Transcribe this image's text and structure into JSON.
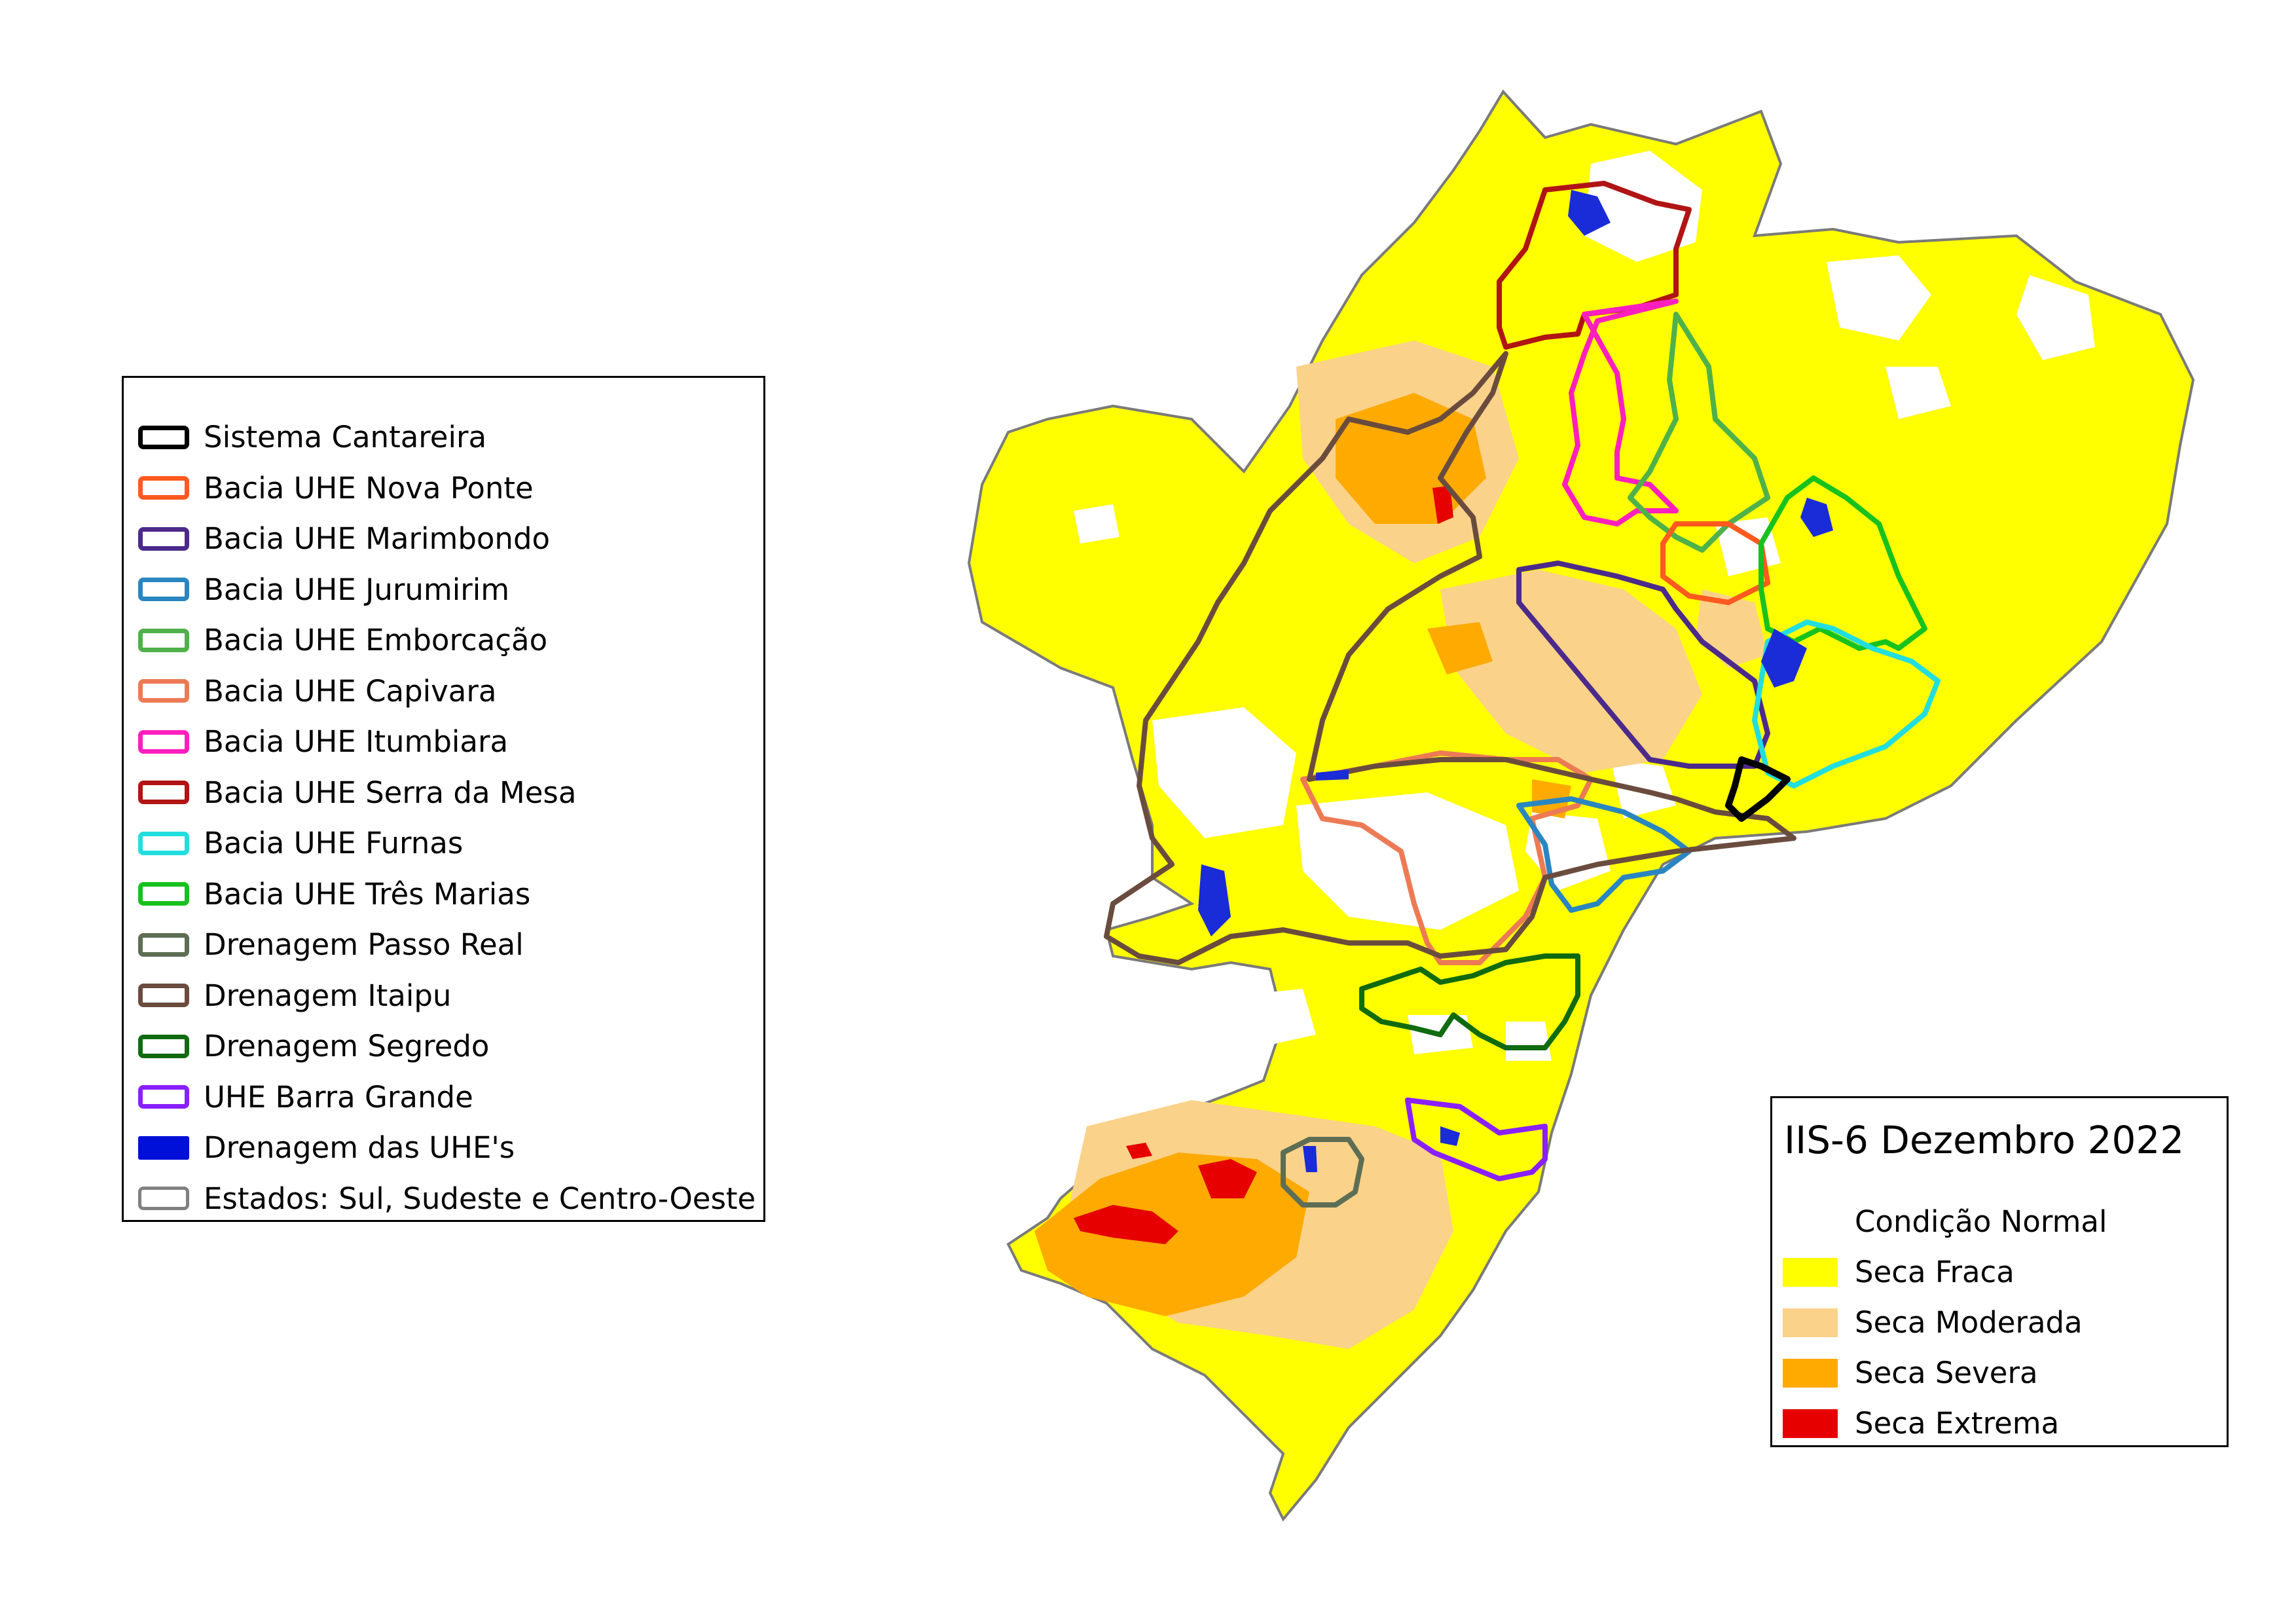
{
  "legend": {
    "items": [
      {
        "label": "Sistema Cantareira",
        "color": "#000000",
        "icon": "outline"
      },
      {
        "label": "Bacia UHE Nova Ponte",
        "color": "#ff5a1f",
        "icon": "outline"
      },
      {
        "label": "Bacia UHE Marimbondo",
        "color": "#4b2a8c",
        "icon": "outline"
      },
      {
        "label": "Bacia UHE Jurumirim",
        "color": "#2a86c0",
        "icon": "outline"
      },
      {
        "label": "Bacia UHE Emborcação",
        "color": "#4fb14a",
        "icon": "outline"
      },
      {
        "label": "Bacia UHE Capivara",
        "color": "#ec7b55",
        "icon": "outline"
      },
      {
        "label": "Bacia UHE Itumbiara",
        "color": "#ff1fbf",
        "icon": "outline"
      },
      {
        "label": "Bacia UHE Serra da Mesa",
        "color": "#b01414",
        "icon": "outline"
      },
      {
        "label": "Bacia UHE Furnas",
        "color": "#22dede",
        "icon": "outline"
      },
      {
        "label": "Bacia UHE Três Marias",
        "color": "#17c21e",
        "icon": "outline"
      },
      {
        "label": "Drenagem Passo Real",
        "color": "#5e6e55",
        "icon": "outline"
      },
      {
        "label": "Drenagem Itaipu",
        "color": "#6a4c3e",
        "icon": "outline"
      },
      {
        "label": "Drenagem Segredo",
        "color": "#106b10",
        "icon": "outline"
      },
      {
        "label": "UHE Barra Grande",
        "color": "#8a1fff",
        "icon": "outline"
      },
      {
        "label": "Drenagem das UHE's",
        "color": "#0010d8",
        "icon": "filled"
      },
      {
        "label": "Estados: Sul, Sudeste e Centro-Oeste",
        "color": "#808080",
        "icon": "outline-thin"
      }
    ]
  },
  "iis": {
    "title": "IIS-6 Dezembro 2022",
    "classes": [
      {
        "label": "Condição Normal",
        "color": "#ffffff"
      },
      {
        "label": "Seca Fraca",
        "color": "#ffff00"
      },
      {
        "label": "Seca Moderada",
        "color": "#fad28a"
      },
      {
        "label": "Seca Severa",
        "color": "#ffaa00"
      },
      {
        "label": "Seca Extrema",
        "color": "#e60000"
      }
    ]
  }
}
